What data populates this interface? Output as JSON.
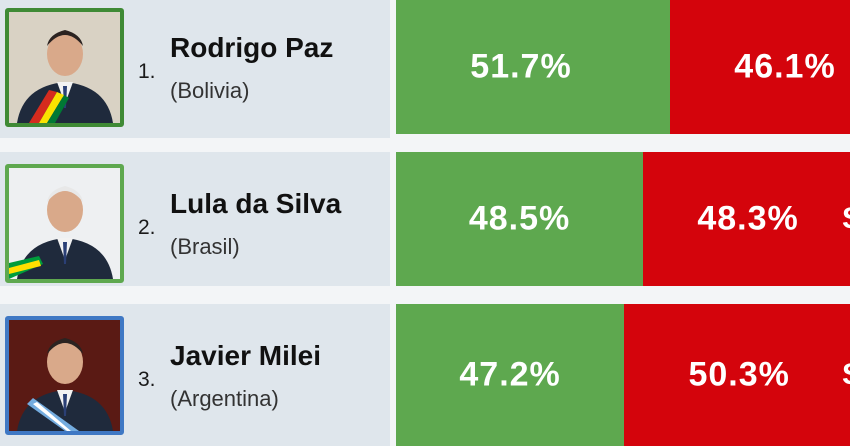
{
  "colors": {
    "approve": "#5ea84f",
    "disapprove": "#d4040c",
    "panel": "#dfe6ec"
  },
  "chart_data": {
    "type": "bar",
    "categories": [
      "Rodrigo Paz",
      "Lula da Silva",
      "Javier Milei"
    ],
    "series": [
      {
        "values": [
          51.7,
          48.5,
          47.2
        ],
        "color": "#5ea84f"
      },
      {
        "values": [
          46.1,
          48.3,
          50.3
        ],
        "color": "#d4040c"
      }
    ],
    "stacked": true,
    "orientation": "horizontal"
  },
  "rows": [
    {
      "rank": "1.",
      "name": "Rodrigo Paz",
      "country": "(Bolivia)",
      "approve_label": "51.7%",
      "disapprove_label": "46.1%",
      "frame_color": "#3f8a35",
      "photo_bg": "#d9d2c4",
      "sash": "bolivia"
    },
    {
      "rank": "2.",
      "name": "Lula da Silva",
      "country": "(Brasil)",
      "approve_label": "48.5%",
      "disapprove_label": "48.3%",
      "frame_color": "#5ea84f",
      "photo_bg": "#eef0f2",
      "sash": "brasil",
      "edge_char": "S"
    },
    {
      "rank": "3.",
      "name": "Javier Milei",
      "country": "(Argentina)",
      "approve_label": "47.2%",
      "disapprove_label": "50.3%",
      "frame_color": "#3f78c4",
      "photo_bg": "#5a1a14",
      "sash": "argentina",
      "edge_char": "S"
    }
  ]
}
